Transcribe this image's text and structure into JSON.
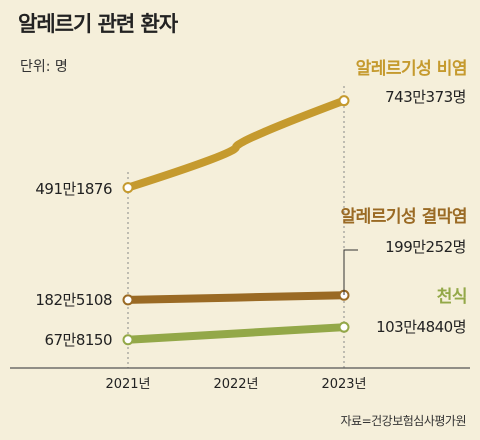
{
  "title": "알레르기 관련 환자",
  "unit_label": "단위: 명",
  "source": "자료=건강보험심사평가원",
  "chart_data": {
    "type": "line",
    "x": [
      "2021년",
      "2022년",
      "2023년"
    ],
    "ylabel": "명",
    "series": [
      {
        "name": "알레르기성 비염",
        "color": "#c59a2e",
        "label_color": "#c59a2e",
        "values": [
          4911876,
          null,
          7430373
        ],
        "start_label": "491만1876",
        "end_label": "743만373명"
      },
      {
        "name": "알레르기성 결막염",
        "color": "#9a6a24",
        "label_color": "#9a6a24",
        "values": [
          1825108,
          null,
          1990252
        ],
        "start_label": "182만5108",
        "end_label": "199만252명"
      },
      {
        "name": "천식",
        "color": "#93a848",
        "label_color": "#93a848",
        "values": [
          678150,
          null,
          1034840
        ],
        "start_label": "67만8150",
        "end_label": "103만4840명"
      }
    ]
  }
}
